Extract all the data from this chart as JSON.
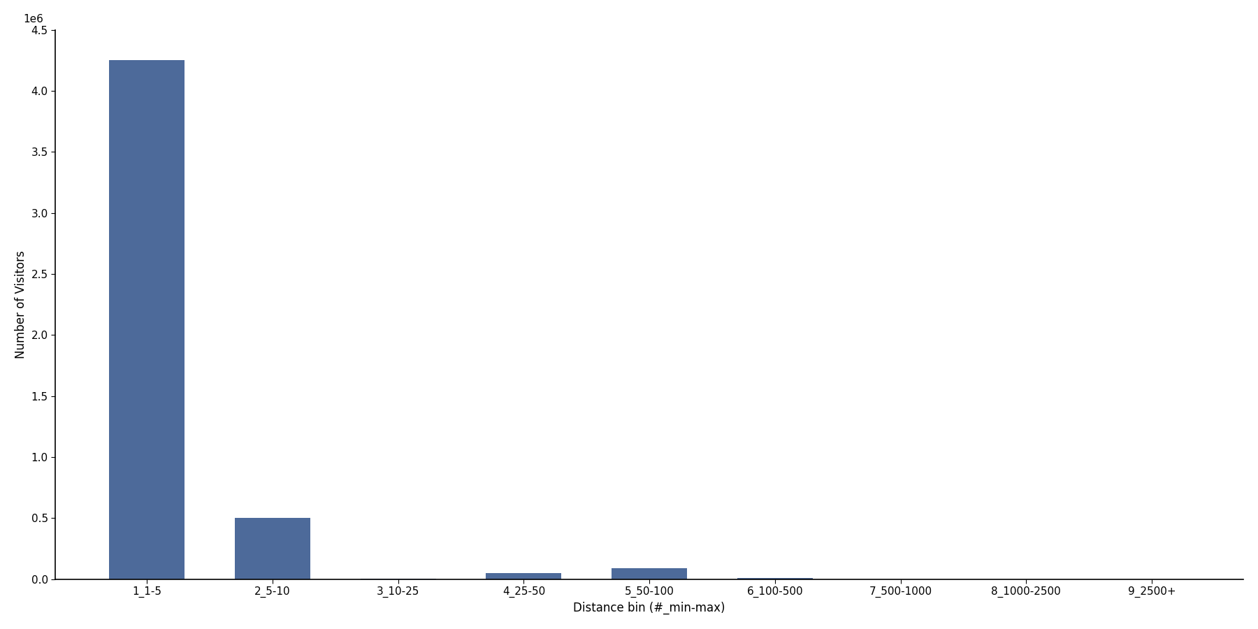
{
  "categories": [
    "1_1-5",
    "2_5-10",
    "3_10-25",
    "4_25-50",
    "5_50-100",
    "6_100-500",
    "7_500-1000",
    "8_1000-2500",
    "9_2500+"
  ],
  "values": [
    4250000,
    500000,
    2000,
    50000,
    90000,
    10000,
    1000,
    500,
    200
  ],
  "bar_color": "#4d6a9a",
  "xlabel": "Distance bin (#_min-max)",
  "ylabel": "Number of Visitors",
  "ylim": [
    0,
    4500000
  ],
  "yticks": [
    0,
    500000,
    1000000,
    1500000,
    2000000,
    2500000,
    3000000,
    3500000,
    4000000,
    4500000
  ],
  "ytick_labels": [
    "0.0",
    "0.5",
    "1.0",
    "1.5",
    "2.0",
    "2.5",
    "3.0",
    "3.5",
    "4.0",
    "4.5"
  ],
  "figsize": [
    18.0,
    9.0
  ],
  "dpi": 100,
  "background_color": "#ffffff"
}
